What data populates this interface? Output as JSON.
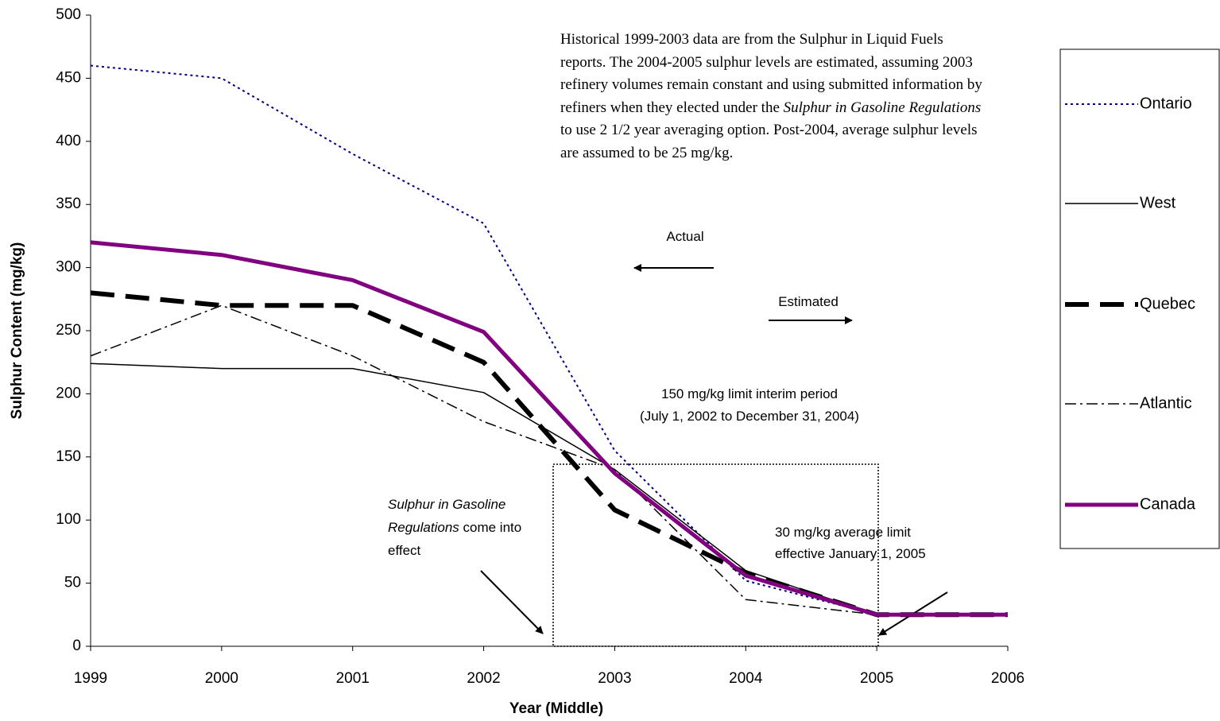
{
  "chart_data": {
    "type": "line",
    "x_label": "Year (Middle)",
    "y_label": "Sulphur Content (mg/kg)",
    "x": [
      1999,
      2000,
      2001,
      2002,
      2003,
      2004,
      2005,
      2006
    ],
    "xlim": [
      1999,
      2006
    ],
    "xticks": [
      1999,
      2000,
      2001,
      2002,
      2003,
      2004,
      2005,
      2006
    ],
    "ylim": [
      0,
      500
    ],
    "yticks": [
      0,
      50,
      100,
      150,
      200,
      250,
      300,
      350,
      400,
      450,
      500
    ],
    "legend": "right",
    "series": [
      {
        "name": "Ontario",
        "color": "#000080",
        "values": [
          460,
          450,
          390,
          335,
          155,
          52,
          25,
          25
        ]
      },
      {
        "name": "West",
        "color": "#000000",
        "values": [
          224,
          220,
          220,
          201,
          140,
          60,
          25,
          25
        ]
      },
      {
        "name": "Quebec",
        "color": "#000000",
        "values": [
          280,
          270,
          270,
          225,
          108,
          58,
          25,
          25
        ]
      },
      {
        "name": "Atlantic",
        "color": "#000000",
        "values": [
          230,
          270,
          230,
          178,
          140,
          37,
          25,
          25
        ]
      },
      {
        "name": "Canada",
        "color": "#800080",
        "values": [
          320,
          310,
          290,
          249,
          137,
          56,
          25,
          25
        ]
      }
    ],
    "annotations": {
      "note": [
        "Historical 1999-2003 data are from the Sulphur in Liquid Fuels reports. The 2004-2005 sulphur levels are estimated, assuming 2003 refinery volumes remain constant and using submitted information by refiners when they elected under the ",
        "Sulphur in Gasoline Regulations",
        "  to use 2 1/2 year averaging option.  Post-2004, average sulphur levels are assumed to be 25 mg/kg."
      ],
      "actual": "Actual",
      "estimated": "Estimated",
      "interim": [
        "150 mg/kg limit interim period",
        "(July 1, 2002  to December 31, 2004)"
      ],
      "regulations": [
        "Sulphur in Gasoline Regulations",
        " come into effect"
      ],
      "average_limit": [
        "30 mg/kg average limit",
        "effective January 1, 2005"
      ]
    }
  }
}
